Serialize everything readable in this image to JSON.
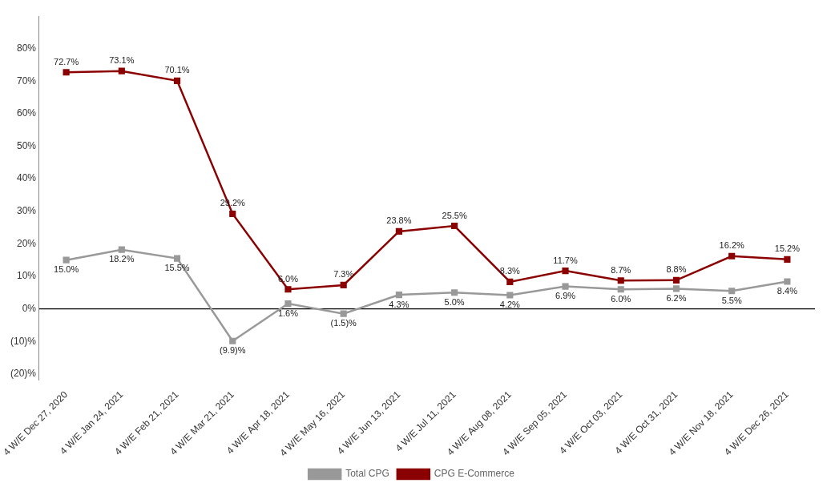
{
  "chart_data": {
    "type": "line",
    "categories": [
      "4 W/E Dec 27, 2020",
      "4 W/E Jan 24, 2021",
      "4 W/E Feb 21, 2021",
      "4 W/E Mar 21, 2021",
      "4 W/E Apr 18, 2021",
      "4 W/E May 16, 2021",
      "4 W/E Jun 13, 2021",
      "4 W/E Jul 11, 2021",
      "4 W/E Aug 08, 2021",
      "4 W/E Sep 05, 2021",
      "4 W/E Oct 03, 2021",
      "4 W/E Oct 31, 2021",
      "4 W/E Nov 18, 2021",
      "4 W/E Dec 26, 2021"
    ],
    "series": [
      {
        "name": "Total CPG",
        "color": "#999999",
        "marker": "square",
        "values": [
          15.0,
          18.2,
          15.5,
          -9.9,
          1.6,
          -1.5,
          4.3,
          5.0,
          4.2,
          6.9,
          6.0,
          6.2,
          5.5,
          8.4
        ],
        "value_labels": [
          "15.0%",
          "18.2%",
          "15.5%",
          "(9.9)%",
          "1.6%",
          "(1.5)%",
          "4.3%",
          "5.0%",
          "4.2%",
          "6.9%",
          "6.0%",
          "6.2%",
          "5.5%",
          "8.4%"
        ]
      },
      {
        "name": "CPG E-Commerce",
        "color": "#8B0000",
        "marker": "square",
        "values": [
          72.7,
          73.1,
          70.1,
          29.2,
          6.0,
          7.3,
          23.8,
          25.5,
          8.3,
          11.7,
          8.7,
          8.8,
          16.2,
          15.2
        ],
        "value_labels": [
          "72.7%",
          "73.1%",
          "70.1%",
          "29.2%",
          "6.0%",
          "7.3%",
          "23.8%",
          "25.5%",
          "8.3%",
          "11.7%",
          "8.7%",
          "8.8%",
          "16.2%",
          "15.2%"
        ]
      }
    ],
    "ylim": [
      -22,
      90
    ],
    "yticks": [
      {
        "value": -20,
        "label": "(20)%"
      },
      {
        "value": -10,
        "label": "(10)%"
      },
      {
        "value": 0,
        "label": "0%"
      },
      {
        "value": 10,
        "label": "10%"
      },
      {
        "value": 20,
        "label": "20%"
      },
      {
        "value": 30,
        "label": "30%"
      },
      {
        "value": 40,
        "label": "40%"
      },
      {
        "value": 50,
        "label": "50%"
      },
      {
        "value": 60,
        "label": "60%"
      },
      {
        "value": 70,
        "label": "70%"
      },
      {
        "value": 80,
        "label": "80%"
      }
    ],
    "grid": false,
    "legend": "bottom",
    "data_labels": true
  }
}
